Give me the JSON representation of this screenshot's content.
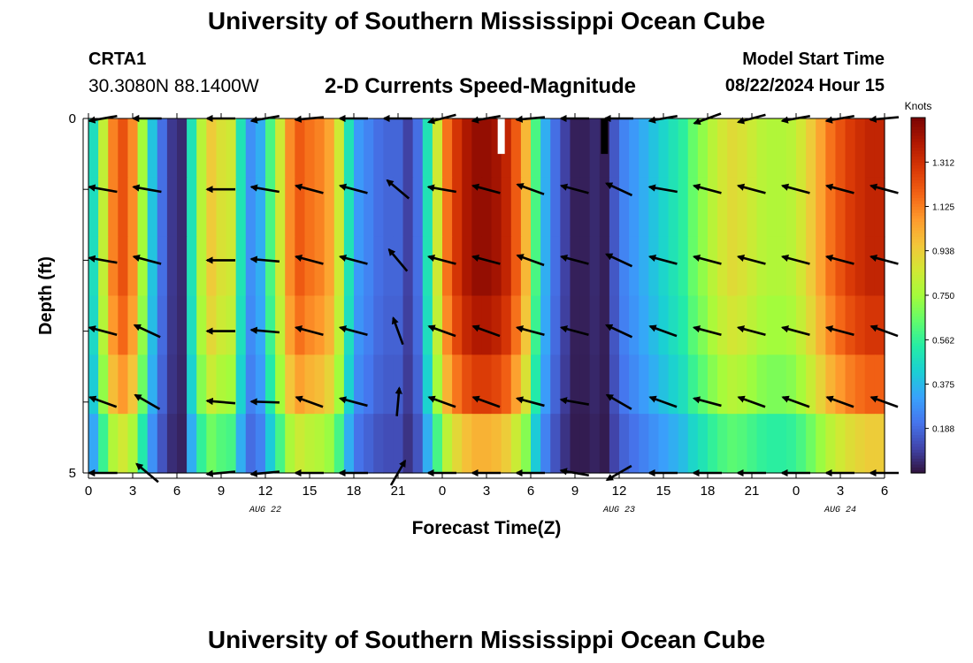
{
  "header": {
    "title": "University of Southern Mississippi Ocean Cube",
    "station": "CRTA1",
    "coordinates": "30.3080N  88.1400W",
    "subtitle": "2-D Currents Speed-Magnitude",
    "model_start_label": "Model Start Time",
    "model_start_value": "08/22/2024 Hour 15"
  },
  "footer": {
    "title": "University of Southern Mississippi Ocean Cube"
  },
  "chart_data": {
    "type": "heatmap",
    "title": "2-D Currents Speed-Magnitude",
    "xlabel": "Forecast Time(Z)",
    "ylabel": "Depth (ft)",
    "x_range_hours": [
      0,
      54
    ],
    "y_range_ft": [
      0,
      5
    ],
    "y_ticks": [
      0,
      1,
      2,
      3,
      4,
      5
    ],
    "y_tick_labels": [
      "0",
      "",
      "",
      "",
      "",
      "5"
    ],
    "x_tick_hours": [
      0,
      3,
      6,
      9,
      12,
      15,
      18,
      21,
      24,
      27,
      30,
      33,
      36,
      39,
      42,
      45,
      48,
      51,
      54
    ],
    "x_tick_labels": [
      "0",
      "3",
      "6",
      "9",
      "12",
      "15",
      "18",
      "21",
      "0",
      "3",
      "6",
      "9",
      "12",
      "15",
      "18",
      "21",
      "0",
      "3",
      "6"
    ],
    "date_labels": [
      {
        "text": "AUG 22",
        "hour": 12
      },
      {
        "text": "AUG 23",
        "hour": 36
      },
      {
        "text": "AUG 24",
        "hour": 51
      }
    ],
    "colorbar": {
      "units": "Knots",
      "min": 0.0,
      "max": 1.5,
      "ticks": [
        0.188,
        0.375,
        0.562,
        0.75,
        0.938,
        1.125,
        1.312
      ],
      "tick_labels": [
        "0.188",
        "0.375",
        "0.562",
        "0.750",
        "0.938",
        "1.125",
        "1.312"
      ],
      "colors": [
        "#30123b",
        "#4145ab",
        "#4675ed",
        "#39a2fc",
        "#1bcfd4",
        "#24eca6",
        "#61fc6c",
        "#a4fc3b",
        "#d1e834",
        "#f3c63a",
        "#fe9b2d",
        "#f36315",
        "#d93806",
        "#b11901",
        "#7a0403"
      ]
    },
    "speed_by_hour": [
      0.48,
      0.82,
      1.12,
      1.22,
      1.1,
      0.75,
      0.4,
      0.2,
      0.08,
      0.05,
      0.5,
      0.8,
      0.95,
      0.88,
      0.85,
      0.5,
      0.28,
      0.35,
      0.6,
      0.85,
      1.1,
      1.2,
      1.15,
      1.12,
      1.05,
      0.85,
      0.5,
      0.3,
      0.25,
      0.2,
      0.18,
      0.18,
      0.1,
      0.2,
      0.5,
      0.85,
      1.15,
      1.3,
      1.4,
      1.45,
      1.45,
      1.42,
      1.35,
      1.2,
      1.0,
      0.6,
      0.35,
      0.2,
      0.1,
      0.03,
      0.03,
      0.05,
      0.03,
      0.15,
      0.25,
      0.3,
      0.35,
      0.4,
      0.45,
      0.5,
      0.55,
      0.65,
      0.72,
      0.8,
      0.86,
      0.9,
      0.88,
      0.84,
      0.8,
      0.78,
      0.78,
      0.8,
      0.86,
      0.95,
      1.05,
      1.15,
      1.22,
      1.28,
      1.32,
      1.35,
      1.35
    ],
    "depth_speed_factor": [
      1.0,
      1.0,
      1.0,
      0.96,
      0.88,
      0.7
    ],
    "missing_bars": [
      {
        "hour": 28,
        "depth_end": 0.5,
        "color": "#ffffff"
      },
      {
        "hour": 35,
        "depth_end": 0.5,
        "color": "#000000"
      }
    ],
    "vector_times": [
      1,
      4,
      9,
      12,
      15,
      18,
      21,
      24,
      27,
      30,
      33,
      36,
      39,
      42,
      45,
      48,
      51,
      54
    ],
    "vector_depths": [
      0,
      1,
      2,
      3,
      4,
      5
    ],
    "vector_angles_deg": [
      [
        190,
        180,
        180,
        190,
        185,
        180,
        180,
        195,
        190,
        185,
        180,
        180,
        190,
        200,
        195,
        190,
        190,
        185
      ],
      [
        170,
        170,
        180,
        170,
        165,
        165,
        140,
        170,
        165,
        160,
        165,
        155,
        170,
        165,
        165,
        165,
        165,
        165
      ],
      [
        170,
        165,
        180,
        175,
        165,
        165,
        130,
        165,
        165,
        160,
        165,
        155,
        165,
        165,
        165,
        165,
        165,
        165
      ],
      [
        165,
        155,
        180,
        175,
        165,
        165,
        110,
        160,
        160,
        165,
        165,
        155,
        160,
        165,
        165,
        165,
        165,
        160
      ],
      [
        160,
        150,
        175,
        178,
        160,
        165,
        85,
        160,
        160,
        165,
        170,
        150,
        160,
        165,
        160,
        160,
        160,
        160
      ],
      [
        180,
        140,
        185,
        185,
        180,
        180,
        60,
        180,
        180,
        180,
        170,
        210,
        180,
        180,
        180,
        180,
        180,
        180
      ]
    ]
  }
}
